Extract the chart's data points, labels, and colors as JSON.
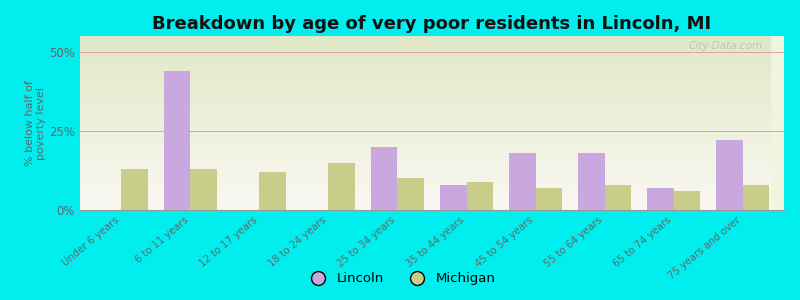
{
  "title": "Breakdown by age of very poor residents in Lincoln, MI",
  "ylabel": "% below half of\npoverty level",
  "categories": [
    "Under 6 years",
    "6 to 11 years",
    "12 to 17 years",
    "18 to 24 years",
    "25 to 34 years",
    "35 to 44 years",
    "45 to 54 years",
    "55 to 64 years",
    "65 to 74 years",
    "75 years and over"
  ],
  "lincoln_values": [
    0,
    44,
    0,
    0,
    20,
    8,
    18,
    18,
    7,
    22
  ],
  "michigan_values": [
    13,
    13,
    12,
    15,
    10,
    9,
    7,
    8,
    6,
    8
  ],
  "lincoln_color": "#c9a8e0",
  "michigan_color": "#c8cd8a",
  "background_color": "#00eeee",
  "plot_bg_color": "#e8efc8",
  "ylim": [
    0,
    55
  ],
  "yticks": [
    0,
    25,
    50
  ],
  "ytick_labels": [
    "0%",
    "25%",
    "50%"
  ],
  "bar_width": 0.38,
  "title_fontsize": 13,
  "legend_labels": [
    "Lincoln",
    "Michigan"
  ],
  "watermark": "City-Data.com"
}
